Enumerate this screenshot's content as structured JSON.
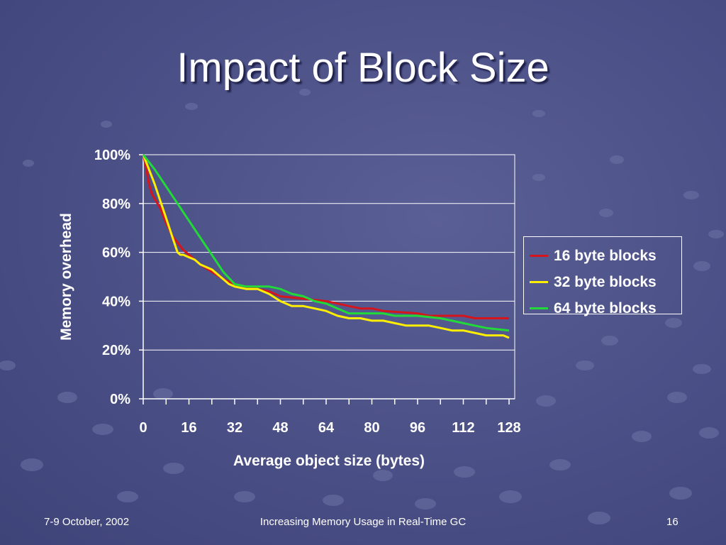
{
  "slide": {
    "title": "Impact of Block Size",
    "footer_left": "7-9 October, 2002",
    "footer_center": "Increasing Memory Usage in Real-Time GC",
    "footer_right": "16"
  },
  "colors": {
    "background": "#4e5389",
    "axis": "#ffffff",
    "grid": "#ffffff"
  },
  "chart_data": {
    "type": "line",
    "xlabel": "Average object size (bytes)",
    "ylabel": "Memory overhead",
    "xlim": [
      0,
      128
    ],
    "ylim": [
      0,
      100
    ],
    "x_ticks": [
      "0",
      "16",
      "32",
      "48",
      "64",
      "80",
      "96",
      "112",
      "128"
    ],
    "y_ticks": [
      "0%",
      "20%",
      "40%",
      "60%",
      "80%",
      "100%"
    ],
    "grid": true,
    "legend_position": "right",
    "series": [
      {
        "name": "16 byte blocks",
        "color": "#d4161c",
        "points": [
          [
            0,
            100
          ],
          [
            1,
            95
          ],
          [
            2,
            88
          ],
          [
            3,
            84
          ],
          [
            4,
            82
          ],
          [
            6,
            78
          ],
          [
            8,
            72
          ],
          [
            10,
            67
          ],
          [
            12,
            64
          ],
          [
            14,
            61
          ],
          [
            16,
            59
          ],
          [
            18,
            57
          ],
          [
            20,
            55
          ],
          [
            24,
            52
          ],
          [
            28,
            49
          ],
          [
            32,
            47
          ],
          [
            36,
            46
          ],
          [
            40,
            45
          ],
          [
            44,
            44
          ],
          [
            48,
            42
          ],
          [
            56,
            41
          ],
          [
            64,
            40
          ],
          [
            68,
            39
          ],
          [
            72,
            38
          ],
          [
            76,
            37
          ],
          [
            80,
            37
          ],
          [
            84,
            36
          ],
          [
            96,
            35
          ],
          [
            100,
            34
          ],
          [
            112,
            34
          ],
          [
            116,
            33
          ],
          [
            128,
            33
          ]
        ]
      },
      {
        "name": "32 byte blocks",
        "color": "#ffee00",
        "points": [
          [
            0,
            100
          ],
          [
            2,
            94
          ],
          [
            4,
            88
          ],
          [
            6,
            81
          ],
          [
            8,
            74
          ],
          [
            10,
            67
          ],
          [
            12,
            60
          ],
          [
            13,
            59
          ],
          [
            14,
            59
          ],
          [
            16,
            58
          ],
          [
            18,
            57
          ],
          [
            20,
            55
          ],
          [
            24,
            53
          ],
          [
            28,
            49
          ],
          [
            30,
            47
          ],
          [
            32,
            46
          ],
          [
            36,
            45
          ],
          [
            40,
            45
          ],
          [
            44,
            43
          ],
          [
            48,
            40
          ],
          [
            52,
            38
          ],
          [
            56,
            38
          ],
          [
            60,
            37
          ],
          [
            64,
            36
          ],
          [
            68,
            34
          ],
          [
            72,
            33
          ],
          [
            76,
            33
          ],
          [
            80,
            32
          ],
          [
            84,
            32
          ],
          [
            88,
            31
          ],
          [
            92,
            30
          ],
          [
            96,
            30
          ],
          [
            100,
            30
          ],
          [
            104,
            29
          ],
          [
            108,
            28
          ],
          [
            112,
            28
          ],
          [
            116,
            27
          ],
          [
            120,
            26
          ],
          [
            126,
            26
          ],
          [
            128,
            25
          ]
        ]
      },
      {
        "name": "64 byte blocks",
        "color": "#22d93a",
        "points": [
          [
            0,
            100
          ],
          [
            4,
            94
          ],
          [
            8,
            87
          ],
          [
            12,
            80
          ],
          [
            16,
            73
          ],
          [
            20,
            66
          ],
          [
            24,
            59
          ],
          [
            28,
            52
          ],
          [
            32,
            47
          ],
          [
            36,
            46
          ],
          [
            40,
            46
          ],
          [
            44,
            46
          ],
          [
            48,
            45
          ],
          [
            52,
            43
          ],
          [
            56,
            42
          ],
          [
            60,
            40
          ],
          [
            64,
            39
          ],
          [
            68,
            37
          ],
          [
            72,
            35
          ],
          [
            76,
            35
          ],
          [
            80,
            35
          ],
          [
            84,
            35
          ],
          [
            88,
            34
          ],
          [
            96,
            34
          ],
          [
            104,
            33
          ],
          [
            108,
            32
          ],
          [
            112,
            31
          ],
          [
            116,
            30
          ],
          [
            120,
            29
          ],
          [
            128,
            28
          ]
        ]
      }
    ]
  }
}
